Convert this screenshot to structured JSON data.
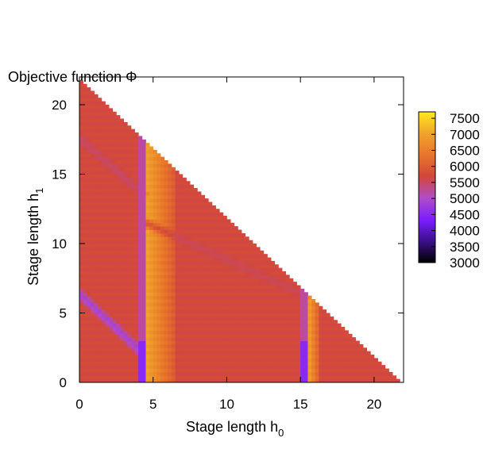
{
  "chart_data": {
    "type": "heatmap",
    "title": "Objective function Φ",
    "xlabel": "Stage length h",
    "xlabel_sub": "0",
    "ylabel": "Stage length h",
    "ylabel_sub": "1",
    "xlim": [
      0,
      22
    ],
    "ylim": [
      0,
      22
    ],
    "x_ticks": [
      0,
      5,
      10,
      15,
      20
    ],
    "y_ticks": [
      0,
      5,
      10,
      15,
      20
    ],
    "domain": "h0 + h1 <= 21.6",
    "colorbar": {
      "ticks": [
        3000,
        3500,
        4000,
        4500,
        5000,
        5500,
        6000,
        6500,
        7000,
        7500
      ],
      "range": [
        3000,
        7700
      ],
      "palette": [
        "#000000",
        "#3b0f8c",
        "#7b1fff",
        "#b24cc8",
        "#d2473a",
        "#e8742a",
        "#f0a32a",
        "#ffe81f"
      ]
    },
    "features": {
      "base_value": 5700,
      "low_columns_h0": [
        4.2,
        15.3
      ],
      "high_bands_h0": [
        [
          4.5,
          6.5
        ],
        [
          15.5,
          16.3
        ]
      ],
      "diagonal_ridges": [
        {
          "points": [
            [
              0,
              17.6
            ],
            [
              4.3,
              13.6
            ]
          ],
          "value": 5400
        },
        {
          "points": [
            [
              4.3,
              11.6
            ],
            [
              15.3,
              6.3
            ]
          ],
          "value": 5500
        },
        {
          "points": [
            [
              0,
              6.4
            ],
            [
              4.2,
              2.2
            ]
          ],
          "value": 4500
        }
      ]
    }
  }
}
